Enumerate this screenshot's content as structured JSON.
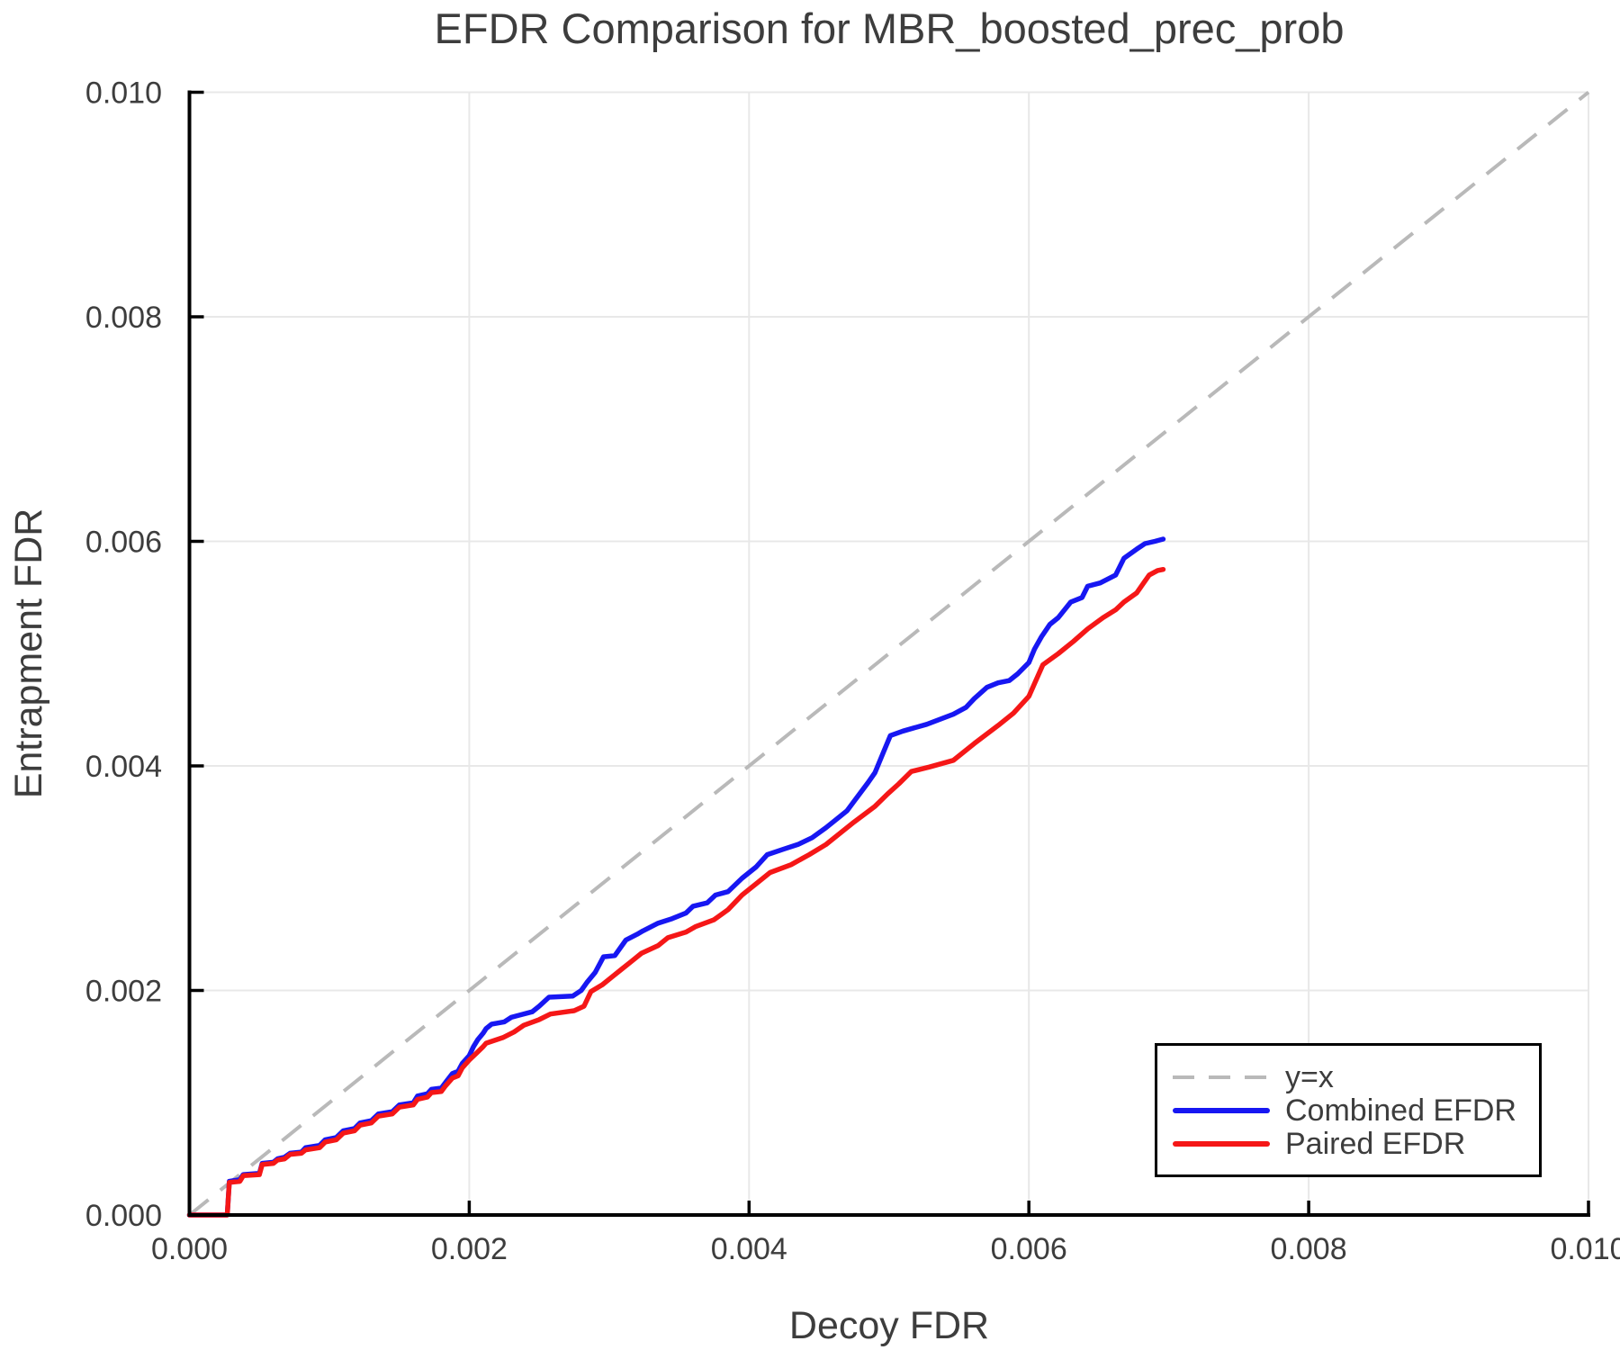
{
  "figure": {
    "title": "EFDR Comparison for MBR_boosted_prec_prob",
    "x_axis_label": "Decoy FDR",
    "y_axis_label": "Entrapment FDR"
  },
  "legend": {
    "items": [
      {
        "label": "y=x",
        "style": "dashed-gray"
      },
      {
        "label": "Combined EFDR",
        "style": "solid-blue"
      },
      {
        "label": "Paired EFDR",
        "style": "solid-red"
      }
    ]
  },
  "chart_data": {
    "type": "line",
    "title": "EFDR Comparison for MBR_boosted_prec_prob",
    "xlabel": "Decoy FDR",
    "ylabel": "Entrapment FDR",
    "xlim": [
      0,
      0.01
    ],
    "ylim": [
      0,
      0.01
    ],
    "grid": true,
    "legend_position": "lower right",
    "x_ticks": [
      0,
      0.002,
      0.004,
      0.006,
      0.008,
      0.01
    ],
    "y_ticks": [
      0,
      0.002,
      0.004,
      0.006,
      0.008,
      0.01
    ],
    "x_tick_labels": [
      "0.000",
      "0.002",
      "0.004",
      "0.006",
      "0.008",
      "0.010"
    ],
    "y_tick_labels": [
      "0.000",
      "0.002",
      "0.004",
      "0.006",
      "0.008",
      "0.010"
    ],
    "colors": {
      "combined": "#1717f2",
      "paired": "#f51717",
      "reference": "#b9b9b9",
      "grid": "#e8e8e8",
      "text": "#3d3d3d",
      "axis": "#000000"
    },
    "reference_line": {
      "label": "y=x",
      "x": [
        0,
        0.01
      ],
      "y": [
        0,
        0.01
      ],
      "style": "dashed"
    },
    "series": [
      {
        "name": "Combined EFDR",
        "color": "#1717f2",
        "points": [
          [
            0,
            0
          ],
          [
            0.00027,
            0
          ],
          [
            0.000285,
            0.0003
          ],
          [
            0.00036,
            0.000315
          ],
          [
            0.000385,
            0.00036
          ],
          [
            0.0005,
            0.00037
          ],
          [
            0.00052,
            0.00046
          ],
          [
            0.0006,
            0.00047
          ],
          [
            0.00063,
            0.0005
          ],
          [
            0.00068,
            0.000515
          ],
          [
            0.00072,
            0.00055
          ],
          [
            0.0008,
            0.00056
          ],
          [
            0.00083,
            0.0006
          ],
          [
            0.00093,
            0.00062
          ],
          [
            0.00097,
            0.00067
          ],
          [
            0.00105,
            0.00069
          ],
          [
            0.0011,
            0.00075
          ],
          [
            0.00118,
            0.00077
          ],
          [
            0.00122,
            0.00082
          ],
          [
            0.0013,
            0.00084
          ],
          [
            0.00135,
            0.0009
          ],
          [
            0.00145,
            0.00092
          ],
          [
            0.0015,
            0.00098
          ],
          [
            0.0016,
            0.001
          ],
          [
            0.00163,
            0.00106
          ],
          [
            0.0017,
            0.00108
          ],
          [
            0.00173,
            0.00112
          ],
          [
            0.0018,
            0.00113
          ],
          [
            0.00183,
            0.00118
          ],
          [
            0.00188,
            0.00126
          ],
          [
            0.00192,
            0.00128
          ],
          [
            0.00195,
            0.00135
          ],
          [
            0.002,
            0.00142
          ],
          [
            0.00203,
            0.0015
          ],
          [
            0.00206,
            0.00156
          ],
          [
            0.0021,
            0.00162
          ],
          [
            0.00212,
            0.00166
          ],
          [
            0.00216,
            0.0017
          ],
          [
            0.00225,
            0.00172
          ],
          [
            0.0023,
            0.00176
          ],
          [
            0.00236,
            0.00178
          ],
          [
            0.00245,
            0.00181
          ],
          [
            0.0025,
            0.00186
          ],
          [
            0.00257,
            0.00194
          ],
          [
            0.00274,
            0.00195
          ],
          [
            0.0028,
            0.002
          ],
          [
            0.00284,
            0.00207
          ],
          [
            0.0029,
            0.00216
          ],
          [
            0.00296,
            0.0023
          ],
          [
            0.00304,
            0.00231
          ],
          [
            0.00312,
            0.00245
          ],
          [
            0.0032,
            0.0025
          ],
          [
            0.00324,
            0.00253
          ],
          [
            0.00335,
            0.0026
          ],
          [
            0.00345,
            0.00264
          ],
          [
            0.00355,
            0.00269
          ],
          [
            0.0036,
            0.00275
          ],
          [
            0.0037,
            0.00278
          ],
          [
            0.00376,
            0.00285
          ],
          [
            0.00385,
            0.00288
          ],
          [
            0.00395,
            0.003
          ],
          [
            0.00405,
            0.0031
          ],
          [
            0.00413,
            0.00321
          ],
          [
            0.00425,
            0.00326
          ],
          [
            0.00435,
            0.0033
          ],
          [
            0.00445,
            0.00336
          ],
          [
            0.00455,
            0.00345
          ],
          [
            0.00462,
            0.00352
          ],
          [
            0.0047,
            0.0036
          ],
          [
            0.00476,
            0.0037
          ],
          [
            0.00485,
            0.00385
          ],
          [
            0.0049,
            0.00394
          ],
          [
            0.00496,
            0.00412
          ],
          [
            0.00501,
            0.00427
          ],
          [
            0.0051,
            0.00431
          ],
          [
            0.00527,
            0.00437
          ],
          [
            0.00546,
            0.00446
          ],
          [
            0.00555,
            0.00452
          ],
          [
            0.00561,
            0.0046
          ],
          [
            0.0057,
            0.0047
          ],
          [
            0.00578,
            0.00474
          ],
          [
            0.00586,
            0.00476
          ],
          [
            0.00592,
            0.00482
          ],
          [
            0.006,
            0.00492
          ],
          [
            0.00604,
            0.00504
          ],
          [
            0.00609,
            0.00515
          ],
          [
            0.00615,
            0.00526
          ],
          [
            0.00621,
            0.00532
          ],
          [
            0.0063,
            0.00546
          ],
          [
            0.00638,
            0.0055
          ],
          [
            0.00642,
            0.0056
          ],
          [
            0.00651,
            0.00563
          ],
          [
            0.00662,
            0.0057
          ],
          [
            0.00668,
            0.00585
          ],
          [
            0.00677,
            0.00593
          ],
          [
            0.00683,
            0.00598
          ],
          [
            0.0069,
            0.006
          ],
          [
            0.00696,
            0.00602
          ]
        ]
      },
      {
        "name": "Paired EFDR",
        "color": "#f51717",
        "points": [
          [
            0,
            0
          ],
          [
            0.00027,
            0
          ],
          [
            0.000285,
            0.00029
          ],
          [
            0.00036,
            0.0003
          ],
          [
            0.000385,
            0.00035
          ],
          [
            0.0005,
            0.00036
          ],
          [
            0.00052,
            0.00045
          ],
          [
            0.0006,
            0.00046
          ],
          [
            0.00063,
            0.00049
          ],
          [
            0.00068,
            0.0005
          ],
          [
            0.00072,
            0.00054
          ],
          [
            0.0008,
            0.00055
          ],
          [
            0.00083,
            0.00058
          ],
          [
            0.00093,
            0.0006
          ],
          [
            0.00097,
            0.00065
          ],
          [
            0.00105,
            0.00067
          ],
          [
            0.0011,
            0.00073
          ],
          [
            0.00118,
            0.00075
          ],
          [
            0.00122,
            0.0008
          ],
          [
            0.0013,
            0.00082
          ],
          [
            0.00135,
            0.00088
          ],
          [
            0.00145,
            0.0009
          ],
          [
            0.0015,
            0.00096
          ],
          [
            0.0016,
            0.00098
          ],
          [
            0.00163,
            0.00103
          ],
          [
            0.0017,
            0.00105
          ],
          [
            0.00173,
            0.00109
          ],
          [
            0.0018,
            0.0011
          ],
          [
            0.00183,
            0.00115
          ],
          [
            0.00188,
            0.00122
          ],
          [
            0.00192,
            0.00124
          ],
          [
            0.00195,
            0.00131
          ],
          [
            0.002,
            0.00138
          ],
          [
            0.00205,
            0.00144
          ],
          [
            0.0021,
            0.0015
          ],
          [
            0.00212,
            0.00153
          ],
          [
            0.00224,
            0.00158
          ],
          [
            0.00232,
            0.00163
          ],
          [
            0.00239,
            0.00169
          ],
          [
            0.0025,
            0.00174
          ],
          [
            0.00258,
            0.00179
          ],
          [
            0.00275,
            0.00182
          ],
          [
            0.00282,
            0.00186
          ],
          [
            0.00287,
            0.00199
          ],
          [
            0.00295,
            0.00205
          ],
          [
            0.00302,
            0.00212
          ],
          [
            0.00309,
            0.00219
          ],
          [
            0.00316,
            0.00226
          ],
          [
            0.00323,
            0.00233
          ],
          [
            0.00335,
            0.0024
          ],
          [
            0.00342,
            0.00247
          ],
          [
            0.00355,
            0.00252
          ],
          [
            0.00362,
            0.00257
          ],
          [
            0.00375,
            0.00263
          ],
          [
            0.00385,
            0.00272
          ],
          [
            0.00395,
            0.00285
          ],
          [
            0.00405,
            0.00295
          ],
          [
            0.00415,
            0.00305
          ],
          [
            0.0043,
            0.00312
          ],
          [
            0.00443,
            0.00321
          ],
          [
            0.00455,
            0.0033
          ],
          [
            0.00465,
            0.0034
          ],
          [
            0.00475,
            0.0035
          ],
          [
            0.0049,
            0.00364
          ],
          [
            0.00499,
            0.00375
          ],
          [
            0.00507,
            0.00384
          ],
          [
            0.00516,
            0.00395
          ],
          [
            0.00529,
            0.00399
          ],
          [
            0.00546,
            0.00405
          ],
          [
            0.00561,
            0.0042
          ],
          [
            0.00578,
            0.00436
          ],
          [
            0.00589,
            0.00447
          ],
          [
            0.006,
            0.00462
          ],
          [
            0.0061,
            0.0049
          ],
          [
            0.00621,
            0.005
          ],
          [
            0.00632,
            0.00511
          ],
          [
            0.00642,
            0.00522
          ],
          [
            0.00653,
            0.00532
          ],
          [
            0.00662,
            0.00539
          ],
          [
            0.00668,
            0.00546
          ],
          [
            0.00677,
            0.00554
          ],
          [
            0.00686,
            0.0057
          ],
          [
            0.00692,
            0.00574
          ],
          [
            0.00696,
            0.00575
          ]
        ]
      }
    ]
  }
}
